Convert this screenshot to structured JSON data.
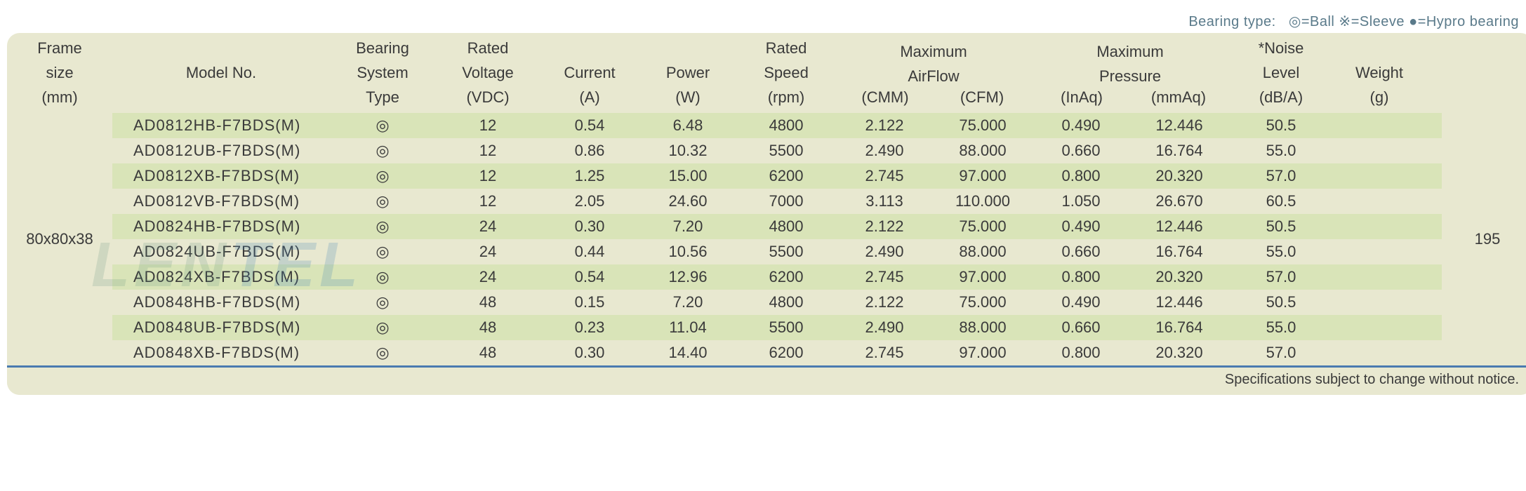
{
  "legend": {
    "prefix": "Bearing type:",
    "ball_symbol": "◎",
    "ball_label": "=Ball",
    "sleeve_symbol": "※",
    "sleeve_label": "=Sleeve",
    "hypro_symbol": "●",
    "hypro_label": "=Hypro bearing"
  },
  "colors": {
    "header_bg": "#e8e8d0",
    "row_odd": "#d9e4b8",
    "row_even": "#e8e8d0",
    "rule": "#4a7ab0",
    "text": "#3a3a3a",
    "legend_text": "#5a7a8a"
  },
  "header": {
    "frame": [
      "Frame",
      "size",
      "(mm)"
    ],
    "model": [
      "Model No."
    ],
    "bearing": [
      "Bearing",
      "System",
      "Type"
    ],
    "voltage": [
      "Rated",
      "Voltage",
      "(VDC)"
    ],
    "current": [
      "Current",
      "(A)"
    ],
    "power": [
      "Power",
      "(W)"
    ],
    "speed": [
      "Rated",
      "Speed",
      "(rpm)"
    ],
    "airflow_top": "Maximum",
    "airflow_mid": "AirFlow",
    "airflow_cmm": "(CMM)",
    "airflow_cfm": "(CFM)",
    "pressure_top": "Maximum",
    "pressure_mid": "Pressure",
    "pressure_inaq": "(InAq)",
    "pressure_mmaq": "(mmAq)",
    "noise": [
      "*Noise",
      "Level",
      "(dB/A)"
    ],
    "weight": [
      "Weight",
      "(g)"
    ]
  },
  "frame_size": "80x80x38",
  "weight": "195",
  "bearing_symbol": "◎",
  "rows": [
    {
      "model": "AD0812HB-F7BDS(M)",
      "voltage": "12",
      "current": "0.54",
      "power": "6.48",
      "speed": "4800",
      "cmm": "2.122",
      "cfm": "75.000",
      "inaq": "0.490",
      "mmaq": "12.446",
      "noise": "50.5"
    },
    {
      "model": "AD0812UB-F7BDS(M)",
      "voltage": "12",
      "current": "0.86",
      "power": "10.32",
      "speed": "5500",
      "cmm": "2.490",
      "cfm": "88.000",
      "inaq": "0.660",
      "mmaq": "16.764",
      "noise": "55.0"
    },
    {
      "model": "AD0812XB-F7BDS(M)",
      "voltage": "12",
      "current": "1.25",
      "power": "15.00",
      "speed": "6200",
      "cmm": "2.745",
      "cfm": "97.000",
      "inaq": "0.800",
      "mmaq": "20.320",
      "noise": "57.0"
    },
    {
      "model": "AD0812VB-F7BDS(M)",
      "voltage": "12",
      "current": "2.05",
      "power": "24.60",
      "speed": "7000",
      "cmm": "3.113",
      "cfm": "110.000",
      "inaq": "1.050",
      "mmaq": "26.670",
      "noise": "60.5"
    },
    {
      "model": "AD0824HB-F7BDS(M)",
      "voltage": "24",
      "current": "0.30",
      "power": "7.20",
      "speed": "4800",
      "cmm": "2.122",
      "cfm": "75.000",
      "inaq": "0.490",
      "mmaq": "12.446",
      "noise": "50.5"
    },
    {
      "model": "AD0824UB-F7BDS(M)",
      "voltage": "24",
      "current": "0.44",
      "power": "10.56",
      "speed": "5500",
      "cmm": "2.490",
      "cfm": "88.000",
      "inaq": "0.660",
      "mmaq": "16.764",
      "noise": "55.0"
    },
    {
      "model": "AD0824XB-F7BDS(M)",
      "voltage": "24",
      "current": "0.54",
      "power": "12.96",
      "speed": "6200",
      "cmm": "2.745",
      "cfm": "97.000",
      "inaq": "0.800",
      "mmaq": "20.320",
      "noise": "57.0"
    },
    {
      "model": "AD0848HB-F7BDS(M)",
      "voltage": "48",
      "current": "0.15",
      "power": "7.20",
      "speed": "4800",
      "cmm": "2.122",
      "cfm": "75.000",
      "inaq": "0.490",
      "mmaq": "12.446",
      "noise": "50.5"
    },
    {
      "model": "AD0848UB-F7BDS(M)",
      "voltage": "48",
      "current": "0.23",
      "power": "11.04",
      "speed": "5500",
      "cmm": "2.490",
      "cfm": "88.000",
      "inaq": "0.660",
      "mmaq": "16.764",
      "noise": "55.0"
    },
    {
      "model": "AD0848XB-F7BDS(M)",
      "voltage": "48",
      "current": "0.30",
      "power": "14.40",
      "speed": "6200",
      "cmm": "2.745",
      "cfm": "97.000",
      "inaq": "0.800",
      "mmaq": "20.320",
      "noise": "57.0"
    }
  ],
  "footer": "Specifications subject to change without notice.",
  "watermark": {
    "part1": "LEN",
    "part2": "TEL"
  }
}
